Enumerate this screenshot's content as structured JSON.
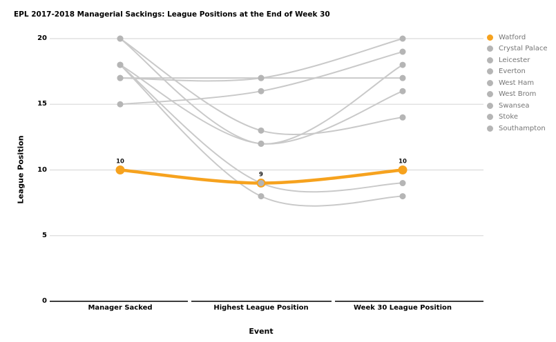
{
  "chart_data": {
    "type": "line",
    "title": "EPL 2017-2018 Managerial Sackings: League Positions at the End of Week 30",
    "xlabel": "Event",
    "ylabel": "League Position",
    "categories": [
      "Manager Sacked",
      "Highest League Position",
      "Week 30 League Position"
    ],
    "y_ticks": [
      0,
      5,
      10,
      15,
      20
    ],
    "ylim": [
      0,
      20
    ],
    "grid": true,
    "legend_position": "right",
    "series": [
      {
        "name": "Watford",
        "values": [
          10,
          9,
          10
        ],
        "highlight": true,
        "labeled": true
      },
      {
        "name": "Crystal Palace",
        "values": [
          20,
          12,
          18
        ],
        "highlight": false
      },
      {
        "name": "Leicester",
        "values": [
          18,
          8,
          8
        ],
        "highlight": false
      },
      {
        "name": "Everton",
        "values": [
          18,
          9,
          9
        ],
        "highlight": false
      },
      {
        "name": "West Ham",
        "values": [
          18,
          12,
          16
        ],
        "highlight": false
      },
      {
        "name": "West Brom",
        "values": [
          17,
          17,
          20
        ],
        "highlight": false
      },
      {
        "name": "Swansea",
        "values": [
          20,
          13,
          14
        ],
        "highlight": false
      },
      {
        "name": "Stoke",
        "values": [
          15,
          16,
          19
        ],
        "highlight": false
      },
      {
        "name": "Southampton",
        "values": [
          17,
          17,
          17
        ],
        "highlight": false
      }
    ]
  },
  "colors": {
    "highlight": "#F6A21E",
    "gray_line": "#C9C9C9",
    "gray_dot": "#B5B5B5",
    "gridline": "#DBDBDB",
    "axis": "#3C3C3C",
    "legend_text": "#757575",
    "label_text": "#111111"
  }
}
